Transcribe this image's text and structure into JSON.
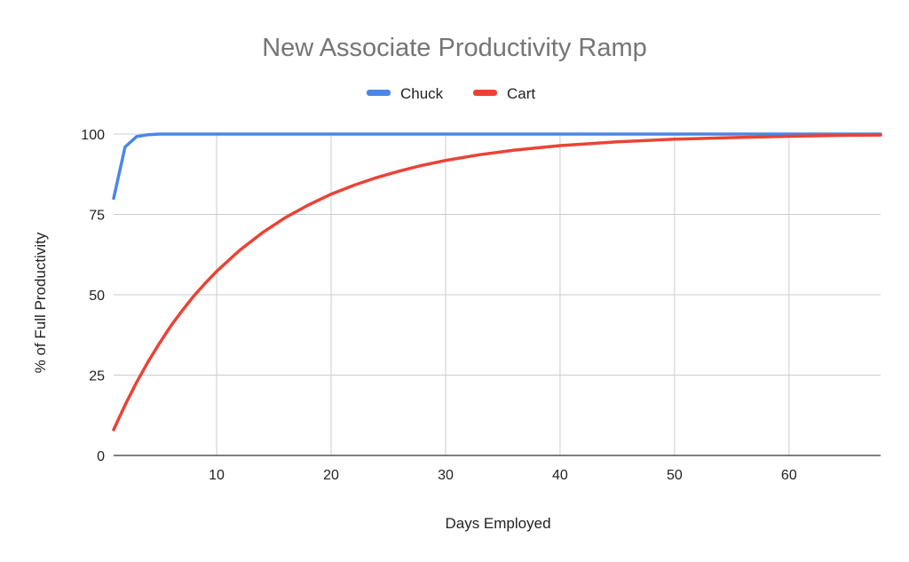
{
  "chart_data": {
    "type": "line",
    "title": "New Associate Productivity Ramp",
    "xlabel": "Days Employed",
    "ylabel": "% of Full Productivity",
    "xlim": [
      1,
      68
    ],
    "ylim": [
      0,
      100
    ],
    "x_ticks": [
      10,
      20,
      30,
      40,
      50,
      60
    ],
    "y_ticks": [
      0,
      25,
      50,
      75,
      100
    ],
    "grid": true,
    "legend_position": "top-center",
    "series": [
      {
        "name": "Chuck",
        "color": "#4a86e8",
        "x": [
          1,
          2,
          3,
          4,
          5,
          6,
          10,
          20,
          30,
          40,
          50,
          60,
          68
        ],
        "y": [
          80,
          96,
          99.2,
          99.8,
          100,
          100,
          100,
          100,
          100,
          100,
          100,
          100,
          100
        ]
      },
      {
        "name": "Cart",
        "color": "#ea4335",
        "x": [
          1,
          2,
          3,
          4,
          5,
          6,
          7,
          8,
          9,
          10,
          12,
          14,
          16,
          18,
          20,
          22,
          24,
          26,
          28,
          30,
          33,
          36,
          40,
          45,
          50,
          55,
          60,
          65,
          68
        ],
        "y": [
          8,
          15.7,
          22.7,
          29.1,
          34.9,
          40.3,
          45.1,
          49.6,
          53.6,
          57.3,
          63.8,
          69.3,
          74.0,
          77.9,
          81.3,
          84.1,
          86.5,
          88.5,
          90.3,
          91.8,
          93.6,
          95.0,
          96.4,
          97.6,
          98.4,
          98.9,
          99.3,
          99.6,
          99.7
        ]
      }
    ]
  }
}
